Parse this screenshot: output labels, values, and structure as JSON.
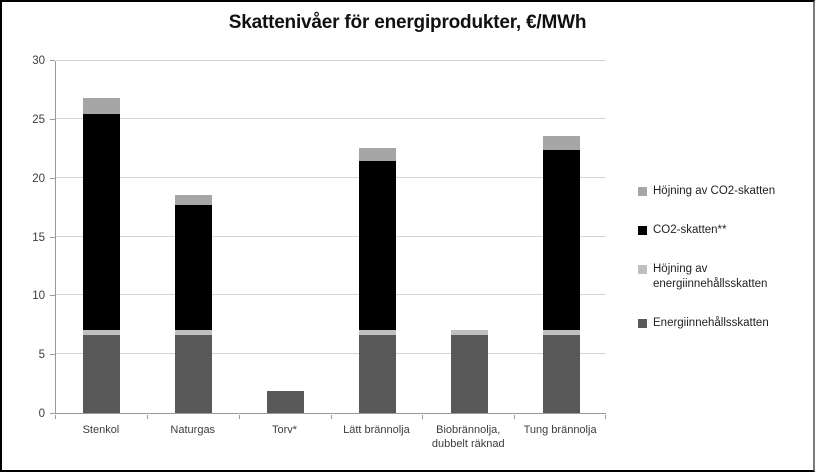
{
  "chart_data": {
    "type": "bar",
    "stacked": true,
    "title": "Skattenivåer för energiprodukter, €/MWh",
    "categories": [
      "Stenkol",
      "Naturgas",
      "Torv*",
      "Lätt brännolja",
      "Biobrännolja,\ndubbelt räknad",
      "Tung brännolja"
    ],
    "series": [
      {
        "name": "Energiinnehållsskatten",
        "color": "#595959",
        "values": [
          6.65,
          6.65,
          1.9,
          6.65,
          6.65,
          6.65
        ]
      },
      {
        "name": "Höjning av energiinnehållsskatten",
        "color": "#bfbfbf",
        "values": [
          0.4,
          0.4,
          0,
          0.4,
          0.4,
          0.4
        ]
      },
      {
        "name": "CO2-skatten**",
        "color": "#000000",
        "values": [
          18.4,
          10.65,
          0,
          14.35,
          0,
          15.3
        ]
      },
      {
        "name": "Höjning av CO2-skatten",
        "color": "#a6a6a6",
        "values": [
          1.35,
          0.8,
          0,
          1.1,
          0,
          1.2
        ]
      }
    ],
    "totals": [
      26.8,
      18.5,
      1.9,
      22.5,
      7.05,
      23.55
    ],
    "xlabel": "",
    "ylabel": "",
    "ylim": [
      0,
      30
    ],
    "yticks": [
      0,
      5,
      10,
      15,
      20,
      25,
      30
    ],
    "grid": true,
    "legend_position": "right",
    "legend": [
      {
        "label": "Höjning av CO2-skatten",
        "color": "#a6a6a6"
      },
      {
        "label": "CO2-skatten**",
        "color": "#000000"
      },
      {
        "label": "Höjning av energiinnehållsskatten",
        "color": "#bfbfbf"
      },
      {
        "label": "Energiinnehållsskatten",
        "color": "#595959"
      }
    ],
    "colors": {
      "gridline": "#d4d4d4",
      "axis": "#9a9a9a",
      "label_text": "#3d3d3d"
    }
  }
}
